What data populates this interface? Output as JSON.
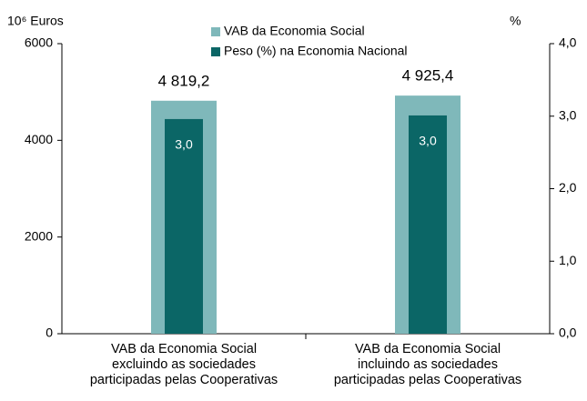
{
  "chart_data": {
    "type": "bar",
    "categories": [
      "VAB da Economia Social\nexcluindo as sociedades\nparticipadas pelas Cooperativas",
      "VAB da Economia Social\nincluindo as sociedades\nparticipadas pelas Cooperativas"
    ],
    "series": [
      {
        "name": "VAB da Economia Social",
        "color": "#7fb8ba",
        "values": [
          4819.2,
          4925.4
        ],
        "value_labels": [
          "4 819,2",
          "4 925,4"
        ]
      },
      {
        "name": "Peso (%) na Economia Nacional",
        "color": "#0b6666",
        "axis": "y2",
        "values": [
          2.96,
          3.01
        ],
        "value_labels": [
          "3,0",
          "3,0"
        ]
      }
    ],
    "ylabel": "10⁶ Euros",
    "y2label": "%",
    "ylim": [
      0,
      6000
    ],
    "yticks": [
      0,
      2000,
      4000,
      6000
    ],
    "y2lim": [
      0,
      4
    ],
    "y2ticks": [
      {
        "value": 0,
        "label": "0,0"
      },
      {
        "value": 1,
        "label": "1,0"
      },
      {
        "value": 2,
        "label": "2,0"
      },
      {
        "value": 3,
        "label": "3,0"
      },
      {
        "value": 4,
        "label": "4,0"
      }
    ],
    "grid": false
  }
}
